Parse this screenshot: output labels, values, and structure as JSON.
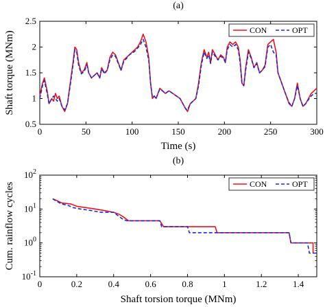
{
  "chart_data": [
    {
      "type": "line",
      "panel_label": "(a)",
      "xlabel": "Time (s)",
      "ylabel": "Shaft torque (MNm)",
      "xlim": [
        0,
        300
      ],
      "ylim": [
        0.5,
        2.5
      ],
      "xticks": [
        0,
        50,
        100,
        150,
        200,
        250,
        300
      ],
      "yticks": [
        0.5,
        1,
        1.5,
        2,
        2.5
      ],
      "ytick_labels": [
        "0.5",
        "1",
        "1.5",
        "2",
        "2.5"
      ],
      "legend_position": "top-right",
      "series": [
        {
          "name": "CON",
          "color": "#e8141a",
          "style": "solid",
          "points": [
            [
              0,
              1.05
            ],
            [
              3,
              1.3
            ],
            [
              5,
              1.4
            ],
            [
              8,
              1.15
            ],
            [
              10,
              0.9
            ],
            [
              13,
              1.0
            ],
            [
              15,
              0.95
            ],
            [
              17,
              1.1
            ],
            [
              19,
              1.0
            ],
            [
              21,
              1.05
            ],
            [
              24,
              0.85
            ],
            [
              27,
              0.75
            ],
            [
              30,
              0.9
            ],
            [
              33,
              1.3
            ],
            [
              36,
              1.7
            ],
            [
              38,
              2.0
            ],
            [
              40,
              1.95
            ],
            [
              42,
              1.7
            ],
            [
              45,
              1.5
            ],
            [
              48,
              1.55
            ],
            [
              51,
              1.7
            ],
            [
              53,
              1.5
            ],
            [
              56,
              1.4
            ],
            [
              59,
              1.45
            ],
            [
              62,
              1.5
            ],
            [
              65,
              1.4
            ],
            [
              67,
              1.6
            ],
            [
              70,
              1.5
            ],
            [
              73,
              1.55
            ],
            [
              76,
              1.8
            ],
            [
              79,
              1.9
            ],
            [
              82,
              1.85
            ],
            [
              85,
              1.7
            ],
            [
              88,
              1.55
            ],
            [
              91,
              1.75
            ],
            [
              94,
              1.8
            ],
            [
              97,
              1.85
            ],
            [
              100,
              1.9
            ],
            [
              103,
              1.95
            ],
            [
              106,
              2.0
            ],
            [
              109,
              2.1
            ],
            [
              112,
              2.25
            ],
            [
              115,
              2.1
            ],
            [
              118,
              1.8
            ],
            [
              120,
              1.3
            ],
            [
              122,
              1.0
            ],
            [
              124,
              1.05
            ],
            [
              126,
              1.0
            ],
            [
              128,
              1.1
            ],
            [
              130,
              1.2
            ],
            [
              133,
              1.15
            ],
            [
              136,
              1.1
            ],
            [
              140,
              1.15
            ],
            [
              144,
              1.1
            ],
            [
              148,
              1.05
            ],
            [
              152,
              1.0
            ],
            [
              155,
              0.9
            ],
            [
              158,
              0.8
            ],
            [
              160,
              0.75
            ],
            [
              163,
              0.9
            ],
            [
              166,
              0.95
            ],
            [
              169,
              1.0
            ],
            [
              172,
              1.3
            ],
            [
              175,
              1.7
            ],
            [
              178,
              1.95
            ],
            [
              181,
              1.8
            ],
            [
              183,
              1.9
            ],
            [
              185,
              1.7
            ],
            [
              187,
              1.95
            ],
            [
              190,
              1.85
            ],
            [
              193,
              1.75
            ],
            [
              196,
              1.85
            ],
            [
              199,
              1.8
            ],
            [
              201,
              1.7
            ],
            [
              203,
              2.0
            ],
            [
              206,
              2.1
            ],
            [
              209,
              2.05
            ],
            [
              212,
              2.1
            ],
            [
              215,
              2.0
            ],
            [
              217,
              1.75
            ],
            [
              219,
              1.3
            ],
            [
              221,
              1.25
            ],
            [
              223,
              1.6
            ],
            [
              226,
              1.95
            ],
            [
              229,
              1.8
            ],
            [
              232,
              1.6
            ],
            [
              235,
              1.7
            ],
            [
              238,
              1.5
            ],
            [
              241,
              1.55
            ],
            [
              244,
              1.65
            ],
            [
              247,
              2.05
            ],
            [
              250,
              2.1
            ],
            [
              253,
              2.15
            ],
            [
              256,
              1.9
            ],
            [
              258,
              1.5
            ],
            [
              261,
              1.35
            ],
            [
              264,
              1.2
            ],
            [
              267,
              1.05
            ],
            [
              270,
              0.9
            ],
            [
              273,
              0.85
            ],
            [
              276,
              1.0
            ],
            [
              279,
              1.3
            ],
            [
              282,
              1.0
            ],
            [
              285,
              0.85
            ],
            [
              288,
              0.9
            ],
            [
              291,
              1.0
            ],
            [
              294,
              1.1
            ],
            [
              297,
              1.15
            ],
            [
              300,
              1.2
            ]
          ]
        },
        {
          "name": "OPT",
          "color": "#1a28d4",
          "style": "dashed",
          "points": [
            [
              0,
              1.0
            ],
            [
              3,
              1.25
            ],
            [
              5,
              1.35
            ],
            [
              8,
              1.1
            ],
            [
              10,
              0.9
            ],
            [
              13,
              1.0
            ],
            [
              15,
              1.05
            ],
            [
              17,
              1.0
            ],
            [
              19,
              0.95
            ],
            [
              21,
              1.0
            ],
            [
              24,
              0.85
            ],
            [
              27,
              0.78
            ],
            [
              30,
              0.9
            ],
            [
              33,
              1.25
            ],
            [
              36,
              1.65
            ],
            [
              38,
              1.95
            ],
            [
              40,
              1.9
            ],
            [
              42,
              1.65
            ],
            [
              45,
              1.48
            ],
            [
              48,
              1.52
            ],
            [
              51,
              1.65
            ],
            [
              53,
              1.5
            ],
            [
              56,
              1.4
            ],
            [
              59,
              1.45
            ],
            [
              62,
              1.5
            ],
            [
              65,
              1.4
            ],
            [
              67,
              1.58
            ],
            [
              70,
              1.48
            ],
            [
              73,
              1.55
            ],
            [
              76,
              1.75
            ],
            [
              79,
              1.85
            ],
            [
              82,
              1.82
            ],
            [
              85,
              1.68
            ],
            [
              88,
              1.55
            ],
            [
              91,
              1.72
            ],
            [
              94,
              1.78
            ],
            [
              97,
              1.85
            ],
            [
              100,
              1.88
            ],
            [
              103,
              1.92
            ],
            [
              106,
              1.98
            ],
            [
              109,
              2.05
            ],
            [
              112,
              2.15
            ],
            [
              115,
              2.0
            ],
            [
              118,
              1.75
            ],
            [
              120,
              1.3
            ],
            [
              122,
              1.02
            ],
            [
              124,
              1.05
            ],
            [
              126,
              1.0
            ],
            [
              128,
              1.1
            ],
            [
              130,
              1.18
            ],
            [
              133,
              1.15
            ],
            [
              136,
              1.1
            ],
            [
              140,
              1.15
            ],
            [
              144,
              1.1
            ],
            [
              148,
              1.05
            ],
            [
              152,
              1.0
            ],
            [
              155,
              0.9
            ],
            [
              158,
              0.8
            ],
            [
              160,
              0.78
            ],
            [
              163,
              0.9
            ],
            [
              166,
              0.95
            ],
            [
              169,
              1.0
            ],
            [
              172,
              1.25
            ],
            [
              175,
              1.65
            ],
            [
              178,
              1.9
            ],
            [
              181,
              1.78
            ],
            [
              183,
              1.85
            ],
            [
              185,
              1.68
            ],
            [
              187,
              1.9
            ],
            [
              190,
              1.82
            ],
            [
              193,
              1.75
            ],
            [
              196,
              1.82
            ],
            [
              199,
              1.78
            ],
            [
              201,
              1.7
            ],
            [
              203,
              1.95
            ],
            [
              206,
              2.05
            ],
            [
              209,
              2.0
            ],
            [
              212,
              2.05
            ],
            [
              215,
              1.95
            ],
            [
              217,
              1.7
            ],
            [
              219,
              1.28
            ],
            [
              221,
              1.25
            ],
            [
              223,
              1.55
            ],
            [
              226,
              1.9
            ],
            [
              229,
              1.78
            ],
            [
              232,
              1.6
            ],
            [
              235,
              1.68
            ],
            [
              238,
              1.5
            ],
            [
              241,
              1.55
            ],
            [
              244,
              1.62
            ],
            [
              247,
              2.0
            ],
            [
              250,
              2.05
            ],
            [
              253,
              1.9
            ],
            [
              256,
              1.85
            ],
            [
              258,
              1.5
            ],
            [
              261,
              1.35
            ],
            [
              264,
              1.2
            ],
            [
              267,
              1.05
            ],
            [
              270,
              0.92
            ],
            [
              273,
              0.85
            ],
            [
              276,
              1.0
            ],
            [
              279,
              1.25
            ],
            [
              282,
              1.0
            ],
            [
              285,
              0.85
            ],
            [
              288,
              0.9
            ],
            [
              291,
              0.98
            ],
            [
              294,
              1.05
            ],
            [
              297,
              1.1
            ],
            [
              300,
              1.1
            ]
          ]
        }
      ]
    },
    {
      "type": "line",
      "panel_label": "(b)",
      "xlabel": "Shaft torsion torque (MNm)",
      "ylabel": "Cum. rainflow cycles",
      "xlim": [
        0,
        1.5
      ],
      "ylim": [
        0.1,
        100
      ],
      "yscale": "log",
      "xticks": [
        0,
        0.2,
        0.4,
        0.6,
        0.8,
        1,
        1.2,
        1.4
      ],
      "xtick_labels": [
        "0",
        "0.2",
        "0.4",
        "0.6",
        "0.8",
        "1",
        "1.2",
        "1.4"
      ],
      "yticks": [
        0.1,
        1,
        10,
        100
      ],
      "ytick_labels": [
        "10^-1",
        "10^0",
        "10^1",
        "10^2"
      ],
      "legend_position": "top-right",
      "series": [
        {
          "name": "CON",
          "color": "#e8141a",
          "style": "solid",
          "points": [
            [
              0.07,
              20
            ],
            [
              0.09,
              18
            ],
            [
              0.1,
              17
            ],
            [
              0.12,
              15
            ],
            [
              0.17,
              14
            ],
            [
              0.2,
              12
            ],
            [
              0.25,
              11
            ],
            [
              0.3,
              10
            ],
            [
              0.35,
              9
            ],
            [
              0.4,
              8
            ],
            [
              0.43,
              7
            ],
            [
              0.45,
              6
            ],
            [
              0.47,
              5
            ],
            [
              0.48,
              4.5
            ],
            [
              0.55,
              4.5
            ],
            [
              0.65,
              4.5
            ],
            [
              0.67,
              3
            ],
            [
              0.95,
              3
            ],
            [
              0.96,
              2
            ],
            [
              1.35,
              2
            ],
            [
              1.36,
              1
            ],
            [
              1.48,
              1
            ],
            [
              1.48,
              0.5
            ]
          ]
        },
        {
          "name": "OPT",
          "color": "#1a28d4",
          "style": "dashed",
          "points": [
            [
              0.07,
              20
            ],
            [
              0.09,
              17
            ],
            [
              0.1,
              16
            ],
            [
              0.12,
              14
            ],
            [
              0.15,
              13
            ],
            [
              0.18,
              11
            ],
            [
              0.22,
              10
            ],
            [
              0.28,
              9
            ],
            [
              0.33,
              8
            ],
            [
              0.4,
              8
            ],
            [
              0.43,
              6
            ],
            [
              0.45,
              5
            ],
            [
              0.47,
              4.5
            ],
            [
              0.65,
              4.5
            ],
            [
              0.66,
              3
            ],
            [
              0.8,
              3
            ],
            [
              0.81,
              2
            ],
            [
              1.35,
              2
            ],
            [
              1.36,
              1
            ],
            [
              1.45,
              1
            ],
            [
              1.46,
              0.5
            ],
            [
              1.5,
              0.5
            ]
          ]
        }
      ]
    }
  ]
}
